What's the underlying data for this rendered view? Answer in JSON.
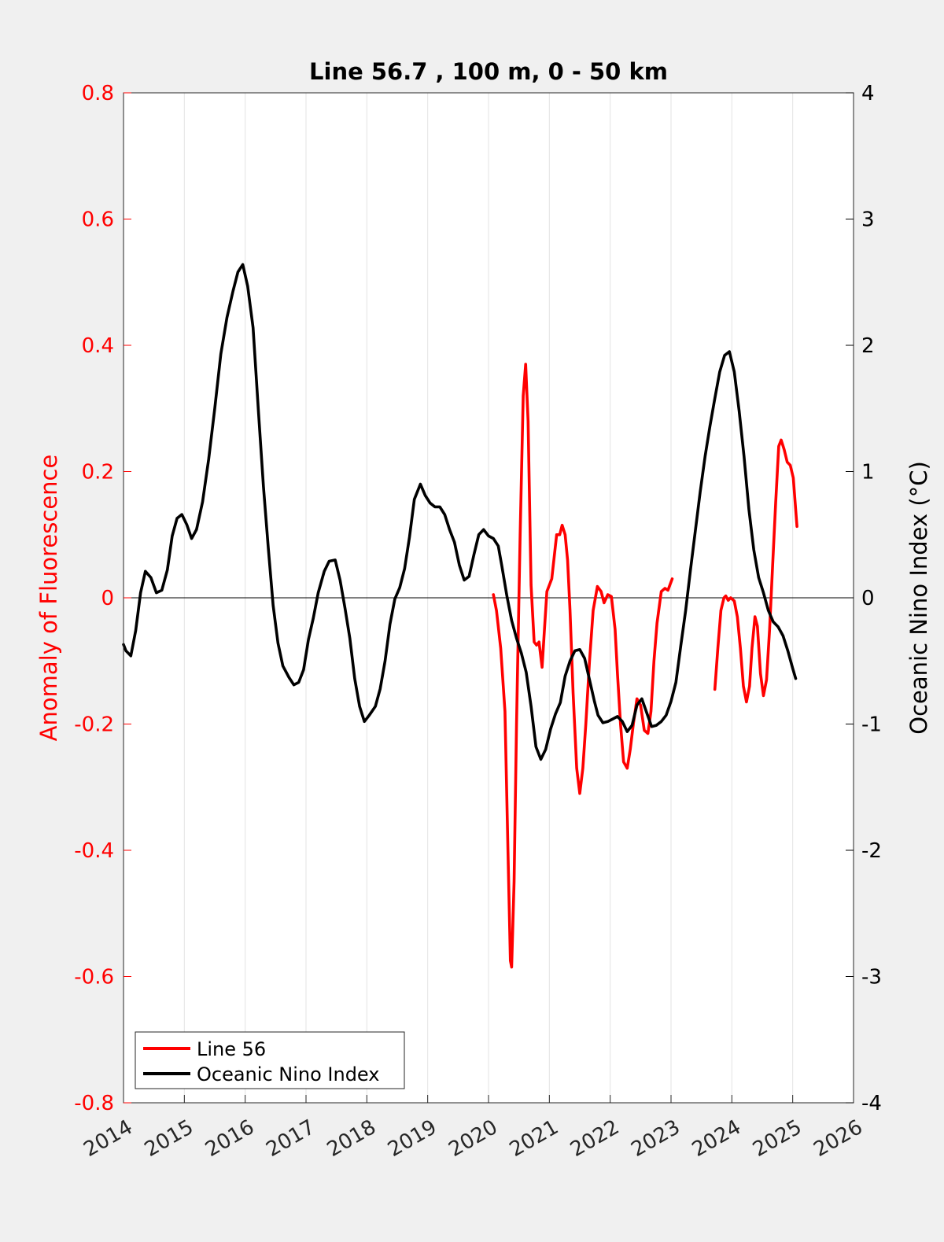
{
  "chart_data": {
    "type": "line",
    "title": "Line 56.7 , 100 m, 0 - 50 km",
    "xlabel": "",
    "ylabel_left": "Anomaly of Fluorescence",
    "ylabel_right": "Oceanic Nino Index (°C)",
    "xlim": [
      2014,
      2026
    ],
    "ylim_left": [
      -0.8,
      0.8
    ],
    "ylim_right": [
      -4,
      4
    ],
    "x_ticks": [
      "2014",
      "2015",
      "2016",
      "2017",
      "2018",
      "2019",
      "2020",
      "2021",
      "2022",
      "2023",
      "2024",
      "2025",
      "2026"
    ],
    "y_ticks_left": [
      "-0.8",
      "-0.6",
      "-0.4",
      "-0.2",
      "0",
      "0.2",
      "0.4",
      "0.6",
      "0.8"
    ],
    "y_ticks_right": [
      "-4",
      "-3",
      "-2",
      "-1",
      "0",
      "1",
      "2",
      "3",
      "4"
    ],
    "grid": "vertical",
    "legend_position": "bottom-left",
    "colors": {
      "line56": "#ff0000",
      "oni": "#000000",
      "left_axis": "#ff0000",
      "right_axis": "#000000"
    },
    "series": [
      {
        "name": "Line 56",
        "axis": "left",
        "color": "#ff0000",
        "segments": [
          [
            [
              2020.08,
              0.005
            ],
            [
              2020.13,
              -0.02
            ],
            [
              2020.2,
              -0.08
            ],
            [
              2020.27,
              -0.18
            ],
            [
              2020.32,
              -0.4
            ],
            [
              2020.36,
              -0.575
            ],
            [
              2020.38,
              -0.585
            ],
            [
              2020.42,
              -0.45
            ],
            [
              2020.46,
              -0.2
            ],
            [
              2020.52,
              0.1
            ],
            [
              2020.57,
              0.32
            ],
            [
              2020.61,
              0.37
            ],
            [
              2020.65,
              0.28
            ],
            [
              2020.7,
              0.02
            ],
            [
              2020.75,
              -0.07
            ],
            [
              2020.79,
              -0.075
            ],
            [
              2020.83,
              -0.07
            ],
            [
              2020.88,
              -0.11
            ],
            [
              2020.92,
              -0.05
            ],
            [
              2020.96,
              0.01
            ],
            [
              2021.04,
              0.03
            ],
            [
              2021.12,
              0.1
            ],
            [
              2021.17,
              0.1
            ],
            [
              2021.21,
              0.115
            ],
            [
              2021.26,
              0.1
            ],
            [
              2021.3,
              0.06
            ],
            [
              2021.34,
              -0.02
            ],
            [
              2021.39,
              -0.15
            ],
            [
              2021.45,
              -0.27
            ],
            [
              2021.5,
              -0.31
            ],
            [
              2021.55,
              -0.27
            ],
            [
              2021.6,
              -0.2
            ],
            [
              2021.66,
              -0.1
            ],
            [
              2021.72,
              -0.02
            ],
            [
              2021.79,
              0.018
            ],
            [
              2021.85,
              0.01
            ],
            [
              2021.9,
              -0.008
            ],
            [
              2021.96,
              0.005
            ],
            [
              2022.02,
              0.002
            ],
            [
              2022.08,
              -0.05
            ],
            [
              2022.12,
              -0.12
            ],
            [
              2022.17,
              -0.2
            ],
            [
              2022.22,
              -0.26
            ],
            [
              2022.28,
              -0.27
            ],
            [
              2022.33,
              -0.24
            ],
            [
              2022.38,
              -0.2
            ],
            [
              2022.44,
              -0.16
            ],
            [
              2022.5,
              -0.17
            ],
            [
              2022.56,
              -0.21
            ],
            [
              2022.62,
              -0.215
            ],
            [
              2022.67,
              -0.18
            ],
            [
              2022.72,
              -0.1
            ],
            [
              2022.77,
              -0.04
            ],
            [
              2022.84,
              0.01
            ],
            [
              2022.9,
              0.015
            ],
            [
              2022.95,
              0.012
            ],
            [
              2023.02,
              0.03
            ]
          ],
          [
            [
              2023.72,
              -0.145
            ],
            [
              2023.77,
              -0.08
            ],
            [
              2023.82,
              -0.02
            ],
            [
              2023.87,
              0.0
            ],
            [
              2023.9,
              0.003
            ],
            [
              2023.94,
              -0.004
            ],
            [
              2023.98,
              0.0
            ],
            [
              2024.04,
              -0.005
            ],
            [
              2024.09,
              -0.03
            ],
            [
              2024.14,
              -0.08
            ],
            [
              2024.19,
              -0.14
            ],
            [
              2024.24,
              -0.165
            ],
            [
              2024.29,
              -0.14
            ],
            [
              2024.33,
              -0.08
            ],
            [
              2024.38,
              -0.03
            ],
            [
              2024.42,
              -0.045
            ],
            [
              2024.47,
              -0.12
            ],
            [
              2024.52,
              -0.155
            ],
            [
              2024.57,
              -0.13
            ],
            [
              2024.62,
              -0.05
            ],
            [
              2024.67,
              0.05
            ],
            [
              2024.72,
              0.15
            ],
            [
              2024.77,
              0.24
            ],
            [
              2024.81,
              0.25
            ],
            [
              2024.86,
              0.235
            ],
            [
              2024.91,
              0.215
            ],
            [
              2024.96,
              0.21
            ],
            [
              2025.01,
              0.19
            ],
            [
              2025.07,
              0.113
            ]
          ]
        ]
      },
      {
        "name": "Oceanic Nino Index",
        "axis": "right",
        "color": "#000000",
        "segments": [
          [
            [
              2014.0,
              -0.37
            ],
            [
              2014.04,
              -0.42
            ],
            [
              2014.12,
              -0.46
            ],
            [
              2014.2,
              -0.26
            ],
            [
              2014.28,
              0.04
            ],
            [
              2014.36,
              0.21
            ],
            [
              2014.45,
              0.16
            ],
            [
              2014.54,
              0.04
            ],
            [
              2014.63,
              0.06
            ],
            [
              2014.72,
              0.22
            ],
            [
              2014.8,
              0.49
            ],
            [
              2014.88,
              0.63
            ],
            [
              2014.96,
              0.66
            ],
            [
              2015.04,
              0.58
            ],
            [
              2015.12,
              0.47
            ],
            [
              2015.2,
              0.54
            ],
            [
              2015.3,
              0.76
            ],
            [
              2015.4,
              1.1
            ],
            [
              2015.5,
              1.5
            ],
            [
              2015.6,
              1.93
            ],
            [
              2015.7,
              2.22
            ],
            [
              2015.8,
              2.43
            ],
            [
              2015.88,
              2.58
            ],
            [
              2015.96,
              2.64
            ],
            [
              2016.04,
              2.47
            ],
            [
              2016.13,
              2.14
            ],
            [
              2016.22,
              1.46
            ],
            [
              2016.3,
              0.88
            ],
            [
              2016.38,
              0.39
            ],
            [
              2016.46,
              -0.06
            ],
            [
              2016.54,
              -0.36
            ],
            [
              2016.62,
              -0.54
            ],
            [
              2016.72,
              -0.63
            ],
            [
              2016.8,
              -0.69
            ],
            [
              2016.88,
              -0.67
            ],
            [
              2016.96,
              -0.57
            ],
            [
              2017.04,
              -0.33
            ],
            [
              2017.12,
              -0.16
            ],
            [
              2017.2,
              0.04
            ],
            [
              2017.3,
              0.21
            ],
            [
              2017.38,
              0.29
            ],
            [
              2017.48,
              0.3
            ],
            [
              2017.56,
              0.14
            ],
            [
              2017.64,
              -0.08
            ],
            [
              2017.72,
              -0.32
            ],
            [
              2017.8,
              -0.64
            ],
            [
              2017.88,
              -0.86
            ],
            [
              2017.96,
              -0.98
            ],
            [
              2018.04,
              -0.93
            ],
            [
              2018.14,
              -0.86
            ],
            [
              2018.22,
              -0.72
            ],
            [
              2018.3,
              -0.5
            ],
            [
              2018.38,
              -0.21
            ],
            [
              2018.46,
              -0.01
            ],
            [
              2018.54,
              0.08
            ],
            [
              2018.62,
              0.23
            ],
            [
              2018.7,
              0.48
            ],
            [
              2018.78,
              0.78
            ],
            [
              2018.88,
              0.9
            ],
            [
              2018.96,
              0.81
            ],
            [
              2019.04,
              0.75
            ],
            [
              2019.12,
              0.72
            ],
            [
              2019.2,
              0.72
            ],
            [
              2019.28,
              0.66
            ],
            [
              2019.36,
              0.54
            ],
            [
              2019.44,
              0.44
            ],
            [
              2019.52,
              0.26
            ],
            [
              2019.6,
              0.14
            ],
            [
              2019.68,
              0.17
            ],
            [
              2019.76,
              0.34
            ],
            [
              2019.84,
              0.5
            ],
            [
              2019.92,
              0.54
            ],
            [
              2020.0,
              0.49
            ],
            [
              2020.08,
              0.47
            ],
            [
              2020.16,
              0.41
            ],
            [
              2020.22,
              0.25
            ],
            [
              2020.3,
              0.02
            ],
            [
              2020.38,
              -0.18
            ],
            [
              2020.46,
              -0.32
            ],
            [
              2020.54,
              -0.44
            ],
            [
              2020.62,
              -0.59
            ],
            [
              2020.7,
              -0.86
            ],
            [
              2020.78,
              -1.18
            ],
            [
              2020.86,
              -1.28
            ],
            [
              2020.94,
              -1.2
            ],
            [
              2021.02,
              -1.04
            ],
            [
              2021.1,
              -0.92
            ],
            [
              2021.18,
              -0.83
            ],
            [
              2021.26,
              -0.62
            ],
            [
              2021.34,
              -0.5
            ],
            [
              2021.42,
              -0.42
            ],
            [
              2021.5,
              -0.41
            ],
            [
              2021.58,
              -0.48
            ],
            [
              2021.66,
              -0.65
            ],
            [
              2021.74,
              -0.82
            ],
            [
              2021.8,
              -0.93
            ],
            [
              2021.88,
              -0.99
            ],
            [
              2021.96,
              -0.98
            ],
            [
              2022.04,
              -0.96
            ],
            [
              2022.12,
              -0.94
            ],
            [
              2022.2,
              -0.98
            ],
            [
              2022.28,
              -1.06
            ],
            [
              2022.36,
              -1.01
            ],
            [
              2022.44,
              -0.85
            ],
            [
              2022.52,
              -0.8
            ],
            [
              2022.6,
              -0.91
            ],
            [
              2022.68,
              -1.02
            ],
            [
              2022.76,
              -1.01
            ],
            [
              2022.84,
              -0.98
            ],
            [
              2022.92,
              -0.93
            ],
            [
              2023.0,
              -0.82
            ],
            [
              2023.08,
              -0.67
            ],
            [
              2023.16,
              -0.38
            ],
            [
              2023.24,
              -0.1
            ],
            [
              2023.32,
              0.22
            ],
            [
              2023.4,
              0.53
            ],
            [
              2023.48,
              0.84
            ],
            [
              2023.56,
              1.12
            ],
            [
              2023.64,
              1.36
            ],
            [
              2023.72,
              1.58
            ],
            [
              2023.8,
              1.79
            ],
            [
              2023.88,
              1.92
            ],
            [
              2023.96,
              1.95
            ],
            [
              2024.04,
              1.79
            ],
            [
              2024.12,
              1.48
            ],
            [
              2024.2,
              1.12
            ],
            [
              2024.28,
              0.7
            ],
            [
              2024.36,
              0.38
            ],
            [
              2024.44,
              0.16
            ],
            [
              2024.52,
              0.04
            ],
            [
              2024.6,
              -0.1
            ],
            [
              2024.68,
              -0.19
            ],
            [
              2024.76,
              -0.23
            ],
            [
              2024.84,
              -0.3
            ],
            [
              2024.92,
              -0.42
            ],
            [
              2025.0,
              -0.56
            ],
            [
              2025.05,
              -0.64
            ]
          ]
        ]
      }
    ]
  }
}
